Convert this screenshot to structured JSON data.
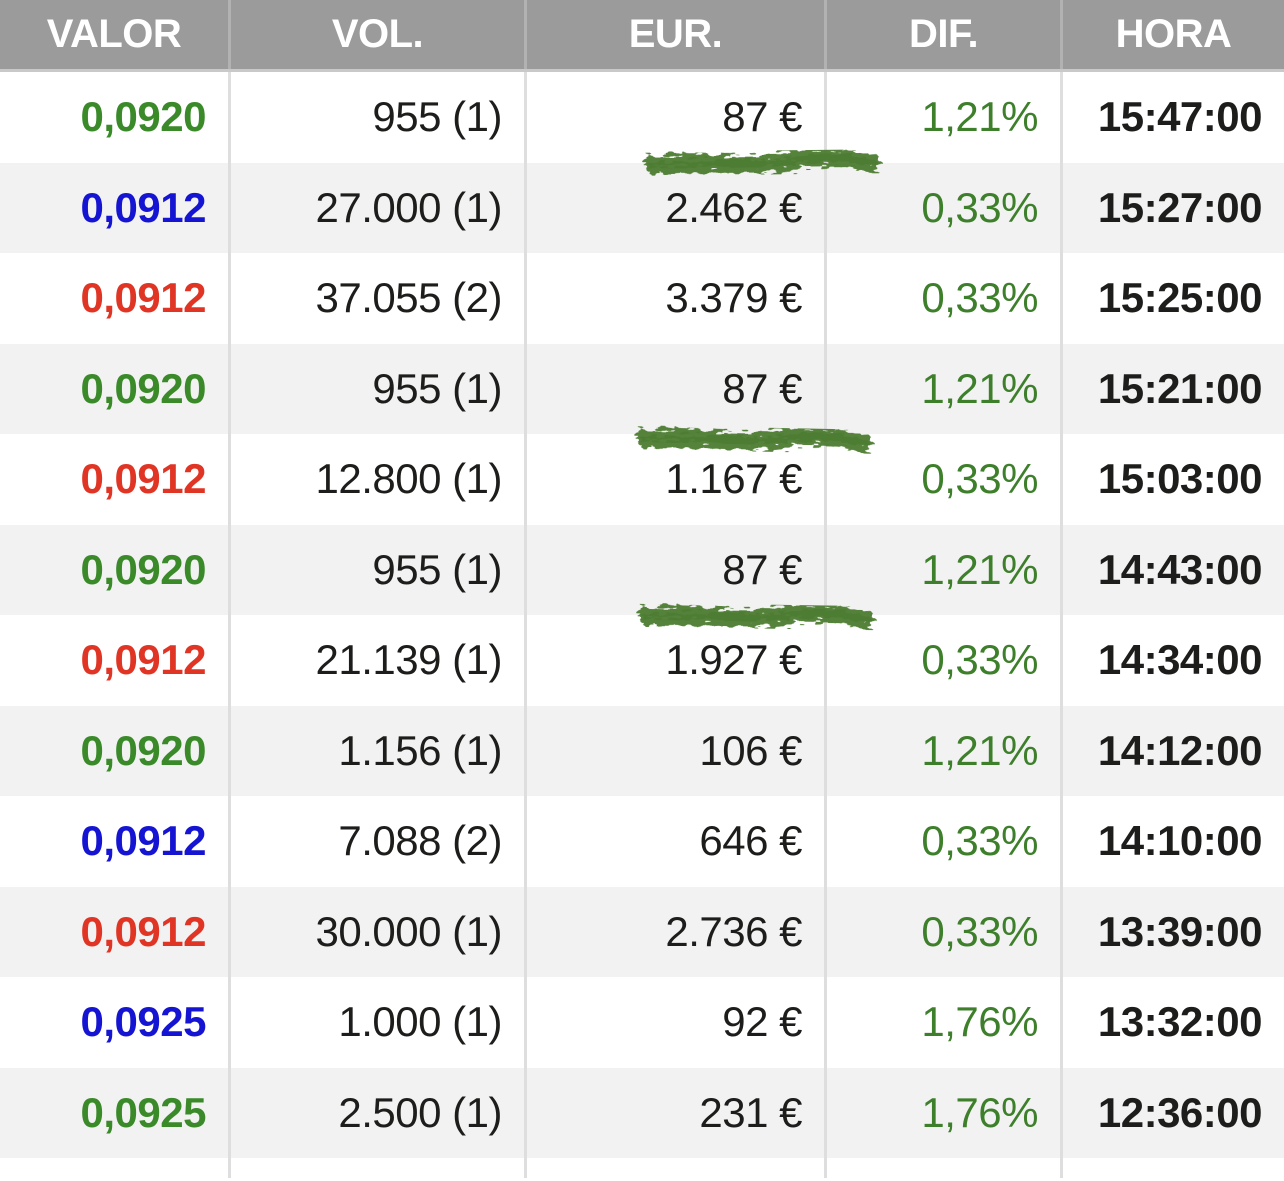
{
  "table": {
    "columns": [
      {
        "key": "valor",
        "label": "VALOR"
      },
      {
        "key": "vol",
        "label": "VOL."
      },
      {
        "key": "eur",
        "label": "EUR."
      },
      {
        "key": "dif",
        "label": "DIF."
      },
      {
        "key": "hora",
        "label": "HORA"
      }
    ],
    "rows": [
      {
        "valor": "0,0920",
        "valor_color": "green",
        "vol": "955 (1)",
        "eur": "87 €",
        "dif": "1,21%",
        "hora": "15:47:00",
        "highlight": true
      },
      {
        "valor": "0,0912",
        "valor_color": "blue",
        "vol": "27.000 (1)",
        "eur": "2.462 €",
        "dif": "0,33%",
        "hora": "15:27:00",
        "highlight": false
      },
      {
        "valor": "0,0912",
        "valor_color": "red",
        "vol": "37.055 (2)",
        "eur": "3.379 €",
        "dif": "0,33%",
        "hora": "15:25:00",
        "highlight": false
      },
      {
        "valor": "0,0920",
        "valor_color": "green",
        "vol": "955 (1)",
        "eur": "87 €",
        "dif": "1,21%",
        "hora": "15:21:00",
        "highlight": true
      },
      {
        "valor": "0,0912",
        "valor_color": "red",
        "vol": "12.800 (1)",
        "eur": "1.167 €",
        "dif": "0,33%",
        "hora": "15:03:00",
        "highlight": false
      },
      {
        "valor": "0,0920",
        "valor_color": "green",
        "vol": "955 (1)",
        "eur": "87 €",
        "dif": "1,21%",
        "hora": "14:43:00",
        "highlight": true
      },
      {
        "valor": "0,0912",
        "valor_color": "red",
        "vol": "21.139 (1)",
        "eur": "1.927 €",
        "dif": "0,33%",
        "hora": "14:34:00",
        "highlight": false
      },
      {
        "valor": "0,0920",
        "valor_color": "green",
        "vol": "1.156 (1)",
        "eur": "106 €",
        "dif": "1,21%",
        "hora": "14:12:00",
        "highlight": false
      },
      {
        "valor": "0,0912",
        "valor_color": "blue",
        "vol": "7.088 (2)",
        "eur": "646 €",
        "dif": "0,33%",
        "hora": "14:10:00",
        "highlight": false
      },
      {
        "valor": "0,0912",
        "valor_color": "red",
        "vol": "30.000 (1)",
        "eur": "2.736 €",
        "dif": "0,33%",
        "hora": "13:39:00",
        "highlight": false
      },
      {
        "valor": "0,0925",
        "valor_color": "blue",
        "vol": "1.000 (1)",
        "eur": "92 €",
        "dif": "1,76%",
        "hora": "13:32:00",
        "highlight": false
      },
      {
        "valor": "0,0925",
        "valor_color": "green",
        "vol": "2.500 (1)",
        "eur": "231 €",
        "dif": "1,76%",
        "hora": "12:36:00",
        "highlight": false
      }
    ]
  },
  "annotations": {
    "highlight_marker": {
      "description": "hand-drawn green marker stroke under the EUR value",
      "color": "#4e7d33",
      "marked_rows_hora": [
        "15:47:00",
        "15:21:00",
        "14:43:00"
      ]
    }
  },
  "colors": {
    "header_background": "#9b9b9b",
    "header_text": "#ffffff",
    "row_stripe": "#f2f2f2",
    "column_divider": "#dedede",
    "text_black": "#1d1d1b",
    "valor_green": "#3a8a2a",
    "valor_blue": "#1414d2",
    "valor_red": "#e03524",
    "dif_green": "#3e7f2b",
    "marker_green": "#4e7d33"
  }
}
